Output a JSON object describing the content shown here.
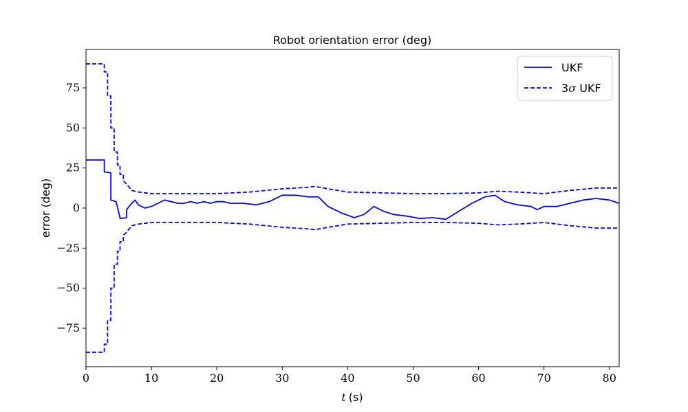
{
  "chart_data": {
    "type": "line",
    "title": "Robot orientation error (deg)",
    "xlabel_var": "t",
    "xlabel_unit": "(s)",
    "ylabel": "error (deg)",
    "xlim": [
      0,
      81.5
    ],
    "ylim": [
      -99,
      99
    ],
    "xticks": [
      0,
      10,
      20,
      30,
      40,
      50,
      60,
      70,
      80
    ],
    "yticks": [
      -75,
      -50,
      -25,
      0,
      25,
      50,
      75
    ],
    "ytick_labels": [
      "−75",
      "−50",
      "−25",
      "0",
      "25",
      "50",
      "75"
    ],
    "grid": false,
    "legend_position": "top-right",
    "color": "#0000ff",
    "series": [
      {
        "name": "UKF",
        "style": "solid",
        "x": [
          0,
          2.8,
          2.8,
          3.8,
          3.8,
          4.6,
          5.2,
          5.2,
          6.2,
          6.2,
          7.0,
          7.5,
          8.0,
          9.0,
          10.0,
          11.0,
          12.0,
          13.0,
          14.0,
          15.0,
          16.0,
          17.0,
          18.0,
          19.0,
          20.0,
          21.0,
          22.0,
          24.0,
          26.0,
          28.0,
          30.0,
          32.0,
          34.0,
          35.5,
          37.0,
          39.0,
          41.0,
          42.5,
          44.0,
          45.5,
          47.0,
          49.0,
          51.0,
          53.0,
          55.0,
          57.0,
          59.0,
          61.0,
          62.5,
          64.0,
          66.0,
          68.0,
          69.0,
          70.0,
          72.0,
          74.0,
          76.0,
          78.0,
          80.0,
          81.5
        ],
        "y": [
          30,
          30,
          22.5,
          22,
          5,
          4,
          -6,
          -6.5,
          -6,
          -1,
          3,
          5,
          2,
          0,
          1,
          3,
          5,
          4,
          3,
          3,
          4,
          3,
          4,
          3,
          4,
          4,
          3,
          3,
          2,
          4,
          8,
          8,
          7,
          7,
          1,
          -3,
          -6,
          -4,
          1,
          -2,
          -4,
          -5,
          -6.5,
          -6,
          -7,
          -2,
          3,
          7,
          8,
          4,
          2,
          1,
          -1,
          1,
          1,
          3,
          5,
          6,
          5,
          3
        ]
      },
      {
        "name": "3σ UKF",
        "name_prefix": "3",
        "name_sigma": "σ",
        "name_suffix": " UKF",
        "style": "dashed",
        "x": [
          0,
          2.8,
          2.8,
          3.3,
          3.3,
          3.8,
          3.8,
          4.3,
          4.3,
          4.8,
          4.8,
          5.2,
          5.2,
          5.7,
          5.7,
          6.2,
          6.6,
          7.0,
          7.5,
          8.0,
          9.0,
          10.0,
          12.0,
          15.0,
          20.0,
          25.0,
          30.0,
          34.0,
          35.0,
          37.0,
          40.0,
          45.0,
          50.0,
          55.0,
          60.0,
          63.0,
          66.0,
          70.0,
          74.0,
          78.0,
          81.5
        ],
        "y_upper": [
          90,
          90,
          85,
          85,
          70,
          70,
          50,
          50,
          35,
          35,
          27,
          27,
          21,
          21,
          17,
          15,
          13,
          11,
          10.5,
          10,
          9.5,
          9,
          9,
          9,
          9,
          10,
          12,
          13,
          13.5,
          12,
          10,
          9.5,
          9,
          9,
          9.5,
          10.5,
          10,
          9,
          11,
          12.5,
          12.5
        ]
      }
    ]
  },
  "legend": {
    "ukf_label": "UKF",
    "sigma_prefix": "3",
    "sigma_symbol": "σ",
    "sigma_suffix": " UKF"
  }
}
